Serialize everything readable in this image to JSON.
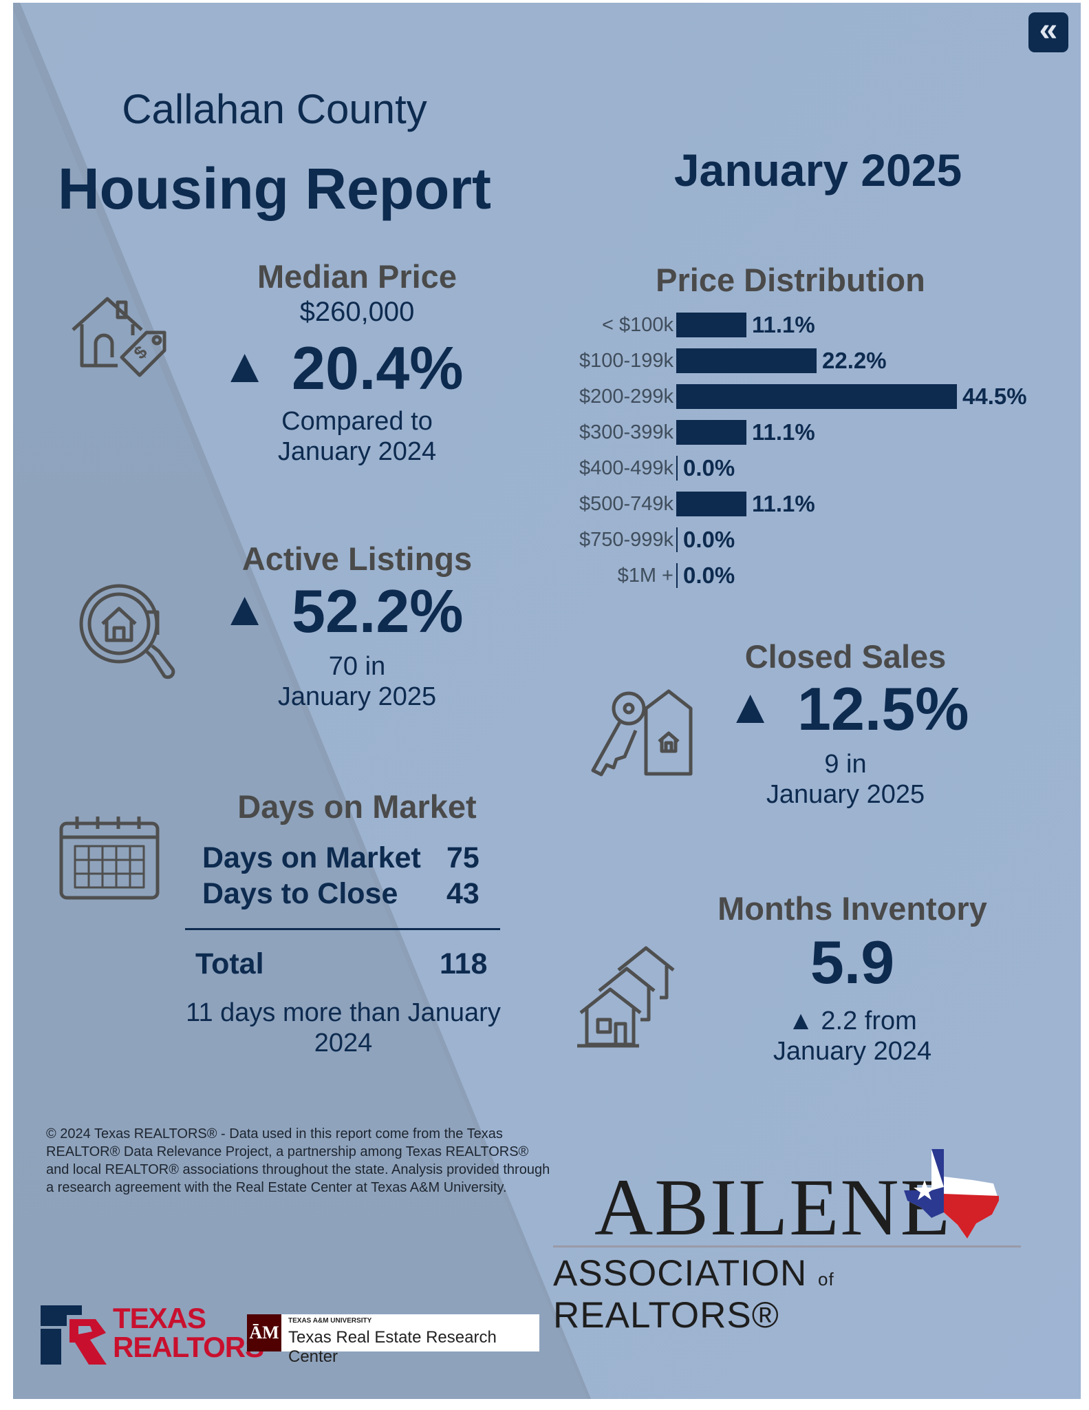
{
  "header": {
    "county": "Callahan County",
    "title": "Housing Report",
    "month": "January 2025",
    "back_icon": "double-chevron-left-icon"
  },
  "median_price": {
    "title": "Median Price",
    "value": "$260,000",
    "arrow": "▲",
    "change": "20.4%",
    "compare_line1": "Compared to",
    "compare_line2": "January 2024",
    "icon": "house-price-tag-icon"
  },
  "active_listings": {
    "title": "Active Listings",
    "arrow": "▲",
    "change": "52.2%",
    "line1": "70 in",
    "line2": "January 2025",
    "icon": "magnifier-house-icon"
  },
  "days_on_market": {
    "title": "Days on Market",
    "rows": [
      {
        "label": "Days on Market",
        "value": "75"
      },
      {
        "label": "Days to Close",
        "value": "43"
      }
    ],
    "total_label": "Total",
    "total_value": "118",
    "note_line1": "11 days more than January",
    "note_line2": "2024",
    "icon": "calendar-icon"
  },
  "chart_data": {
    "type": "bar",
    "title": "Price Distribution",
    "orientation": "horizontal",
    "categories": [
      "< $100k",
      "$100-199k",
      "$200-299k",
      "$300-399k",
      "$400-499k",
      "$500-749k",
      "$750-999k",
      "$1M +"
    ],
    "values": [
      11.1,
      22.2,
      44.5,
      11.1,
      0.0,
      11.1,
      0.0,
      0.0
    ],
    "labels": [
      "11.1%",
      "22.2%",
      "44.5%",
      "11.1%",
      "0.0%",
      "11.1%",
      "0.0%",
      "0.0%"
    ],
    "unit": "%",
    "bar_color": "#0d2a4f"
  },
  "closed_sales": {
    "title": "Closed Sales",
    "arrow": "▲",
    "change": "12.5%",
    "line1": "9 in",
    "line2": "January 2025",
    "icon": "key-house-tag-icon"
  },
  "months_inventory": {
    "title": "Months Inventory",
    "value": "5.9",
    "change_line1": "▲ 2.2 from",
    "change_line2": "January 2024",
    "icon": "houses-stack-icon"
  },
  "footer": {
    "disclaimer": "© 2024 Texas REALTORS® - Data used in this report come from the Texas REALTOR® Data Relevance Project, a partnership among Texas REALTORS® and local REALTOR® associations throughout the state. Analysis provided through a research agreement with the Real Estate Center at Texas A&M University.",
    "texas_realtors_line1": "TEXAS",
    "texas_realtors_line2": "REALTORS",
    "tamu_small": "TEXAS A&M UNIVERSITY",
    "tamu_name": "Texas Real Estate Research Center",
    "abilene_word": "ABILENE",
    "abilene_assoc": "ASSOCIATION",
    "abilene_of": "of",
    "abilene_realtors": "REALTORS®"
  }
}
